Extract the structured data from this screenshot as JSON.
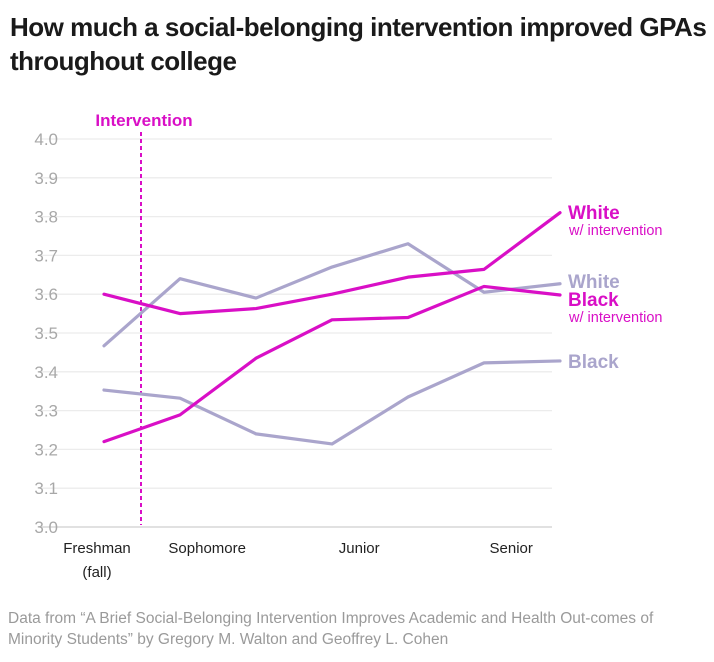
{
  "chart_data": {
    "type": "line",
    "title": "How much a social-belonging intervention improved GPAs throughout college",
    "x": [
      0,
      1,
      2,
      3,
      4,
      5,
      6
    ],
    "x_ticks": [
      {
        "label": "Freshman",
        "label2": "(fall)",
        "at": 0
      },
      {
        "label": "Sophomore",
        "at": 1.45
      },
      {
        "label": "Junior",
        "at": 3.45
      },
      {
        "label": "Senior",
        "at": 5.45
      }
    ],
    "ylim": [
      3.0,
      4.0
    ],
    "y_ticks": [
      "3.0",
      "3.1",
      "3.2",
      "3.3",
      "3.4",
      "3.5",
      "3.6",
      "3.7",
      "3.8",
      "3.9",
      "4.0"
    ],
    "grid": true,
    "annotation": {
      "label": "Intervention",
      "at": 0.5
    },
    "series": [
      {
        "name": "White",
        "sub": "",
        "color": "#aaa5cc",
        "values": [
          3.467,
          3.64,
          3.59,
          3.67,
          3.73,
          3.605,
          3.627
        ]
      },
      {
        "name": "Black",
        "sub": "",
        "color": "#aaa5cc",
        "values": [
          3.353,
          3.332,
          3.24,
          3.214,
          3.335,
          3.423,
          3.428
        ]
      },
      {
        "name": "White",
        "sub": "w/ intervention",
        "color": "#d90fc6",
        "values": [
          3.6,
          3.55,
          3.563,
          3.6,
          3.644,
          3.664,
          3.81
        ]
      },
      {
        "name": "Black",
        "sub": "w/ intervention",
        "color": "#d90fc6",
        "values": [
          3.22,
          3.289,
          3.435,
          3.534,
          3.54,
          3.62,
          3.598
        ]
      }
    ],
    "legend_placement": "right, inline labels",
    "source": "Data from “A Brief Social-Belonging Intervention Improves Academic and Health Out-comes of Minority Students” by Gregory M. Walton and Geoffrey L. Cohen"
  }
}
